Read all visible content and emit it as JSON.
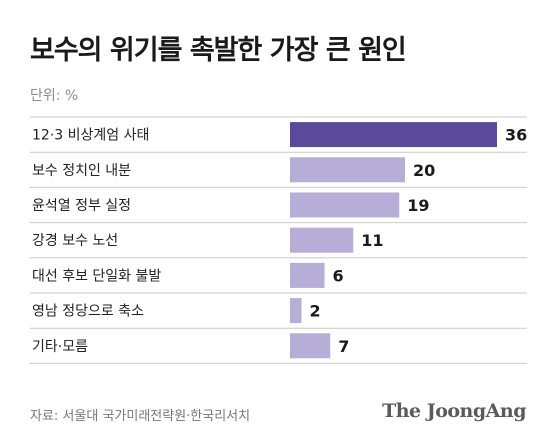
{
  "chart_data": {
    "type": "bar",
    "orientation": "horizontal",
    "title": "보수의 위기를 촉발한 가장 큰 원인",
    "unit_label": "단위: %",
    "categories": [
      "12·3 비상계엄 사태",
      "보수 정치인 내분",
      "윤석열 정부 실정",
      "강경 보수 노선",
      "대선 후보 단일화 불발",
      "영남 정당으로 축소",
      "기타·모름"
    ],
    "values": [
      36,
      20,
      19,
      11,
      6,
      2,
      7
    ],
    "xlim": [
      0,
      36
    ],
    "grid": false,
    "highlight_color": "#5b4a9a",
    "bar_color": "#b6aed6",
    "row_line_color": "#c8c8c8"
  },
  "footer": {
    "source": "자료: 서울대 국가미래전략원·한국리서치",
    "brand": "The JoongAng"
  }
}
